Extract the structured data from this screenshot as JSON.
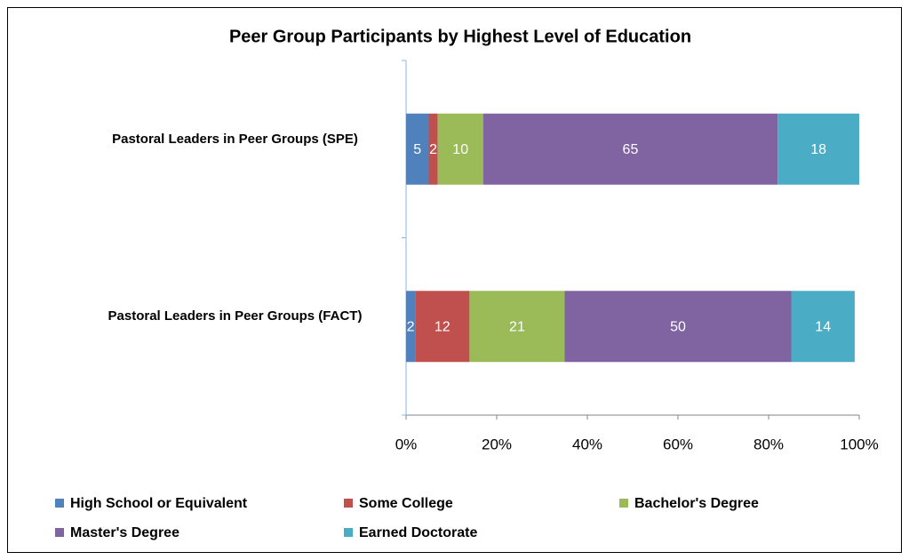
{
  "chart_data": {
    "type": "stacked_barh",
    "title": "Peer Group Participants by Highest Level of Education",
    "categories": [
      "Pastoral Leaders in Peer Groups (SPE)",
      "Pastoral Leaders in Peer Groups (FACT)"
    ],
    "series": [
      {
        "name": "High School or Equivalent",
        "color": "#4f81bd",
        "values": [
          5,
          2
        ]
      },
      {
        "name": "Some College",
        "color": "#c0504d",
        "values": [
          2,
          12
        ]
      },
      {
        "name": "Bachelor's Degree",
        "color": "#9bbb59",
        "values": [
          10,
          21
        ]
      },
      {
        "name": "Master's Degree",
        "color": "#8064a2",
        "values": [
          65,
          50
        ]
      },
      {
        "name": "Earned Doctorate",
        "color": "#4bacc6",
        "values": [
          18,
          14
        ]
      }
    ],
    "xlim": [
      0,
      100
    ],
    "xticks": [
      {
        "value": 0,
        "label": "0%"
      },
      {
        "value": 20,
        "label": "20%"
      },
      {
        "value": 40,
        "label": "40%"
      },
      {
        "value": 60,
        "label": "60%"
      },
      {
        "value": 80,
        "label": "80%"
      },
      {
        "value": 100,
        "label": "100%"
      }
    ],
    "legend": "bottom"
  }
}
